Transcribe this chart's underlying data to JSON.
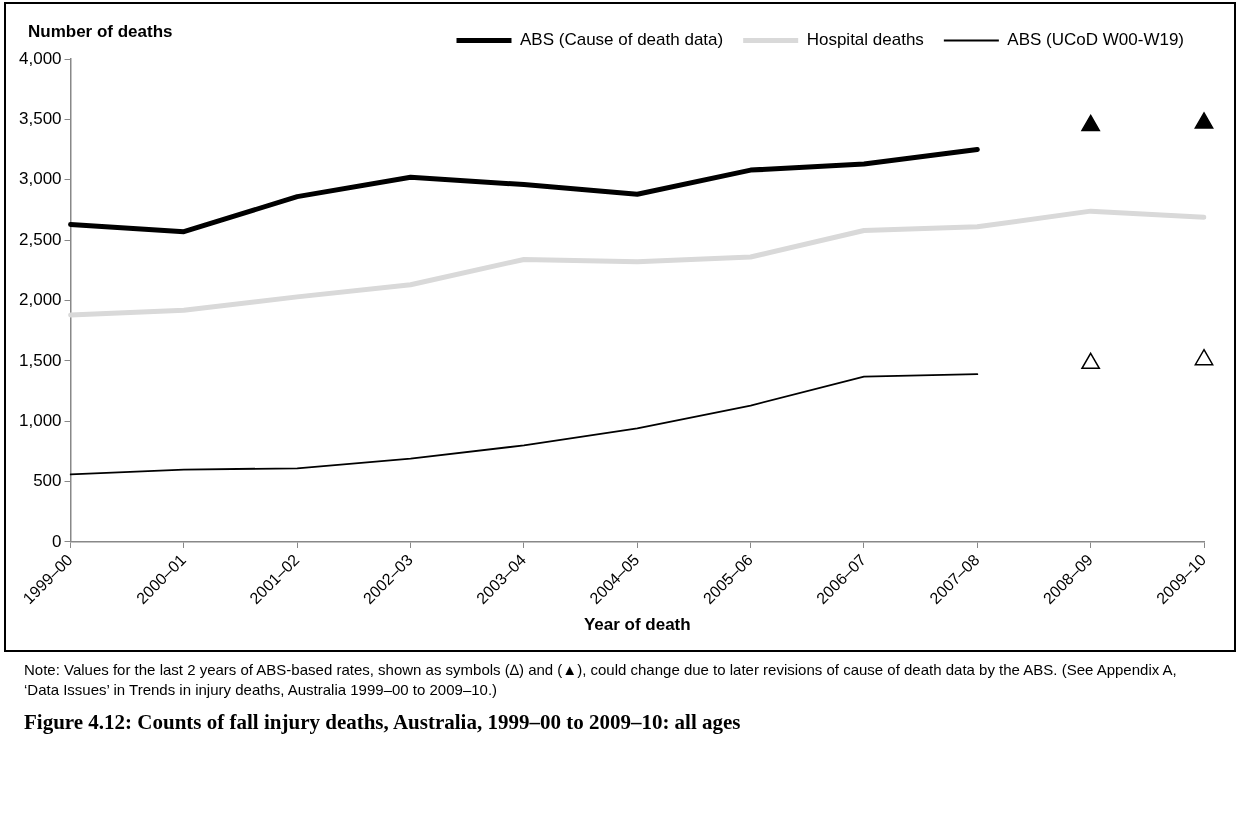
{
  "chart_data": {
    "type": "line",
    "title": "Figure 4.12: Counts of fall injury deaths, Australia, 1999–00 to 2009–10: all ages",
    "xlabel": "Year of death",
    "ylabel": "Number of deaths",
    "categories": [
      "1999–00",
      "2000–01",
      "2001–02",
      "2002–03",
      "2003–04",
      "2004–05",
      "2005–06",
      "2006–07",
      "2007–08",
      "2008–09",
      "2009–10"
    ],
    "series": [
      {
        "name": "ABS (Cause of death data)",
        "color": "#000000",
        "values": [
          2630,
          2570,
          2860,
          3020,
          2960,
          2880,
          3080,
          3130,
          3250,
          null,
          null
        ]
      },
      {
        "name": "Hospital deaths",
        "color": "#d9d9d9",
        "values": [
          1880,
          1920,
          2030,
          2130,
          2340,
          2320,
          2360,
          2580,
          2610,
          2740,
          2690
        ]
      },
      {
        "name": "ABS (UCoD W00-W19)",
        "color": "#000000",
        "values": [
          560,
          600,
          610,
          690,
          800,
          940,
          1130,
          1370,
          1390,
          null,
          null
        ]
      },
      {
        "type": "scatter",
        "marker": "triangle",
        "color": "#000000",
        "values": [
          null,
          null,
          null,
          null,
          null,
          null,
          null,
          null,
          null,
          3450,
          3470
        ]
      },
      {
        "type": "scatter",
        "marker": "triangle",
        "color": "#ffffff",
        "values": [
          null,
          null,
          null,
          null,
          null,
          null,
          null,
          null,
          null,
          1480,
          1510
        ]
      }
    ],
    "ylim": [
      0,
      4000
    ],
    "yticks": [
      {
        "value": 0,
        "label": "0"
      },
      {
        "value": 500,
        "label": "500"
      },
      {
        "value": 1000,
        "label": "1,000"
      },
      {
        "value": 1500,
        "label": "1,500"
      },
      {
        "value": 2000,
        "label": "2,000"
      },
      {
        "value": 2500,
        "label": "2,500"
      },
      {
        "value": 3000,
        "label": "3,000"
      },
      {
        "value": 3500,
        "label": "3,500"
      },
      {
        "value": 4000,
        "label": "4,000"
      }
    ],
    "grid": false,
    "legend": "top right",
    "marker": "none",
    "line_style": "solid",
    "annotations": [
      "Note: Values for the last 2 years of ABS-based rates, shown as symbols (∆) and (▲), could change due to later revisions of cause of death data by the ABS. (See Appendix A, ‘Data Issues’ in Trends in injury deaths, Australia 1999–00 to 2009–10.)"
    ]
  }
}
